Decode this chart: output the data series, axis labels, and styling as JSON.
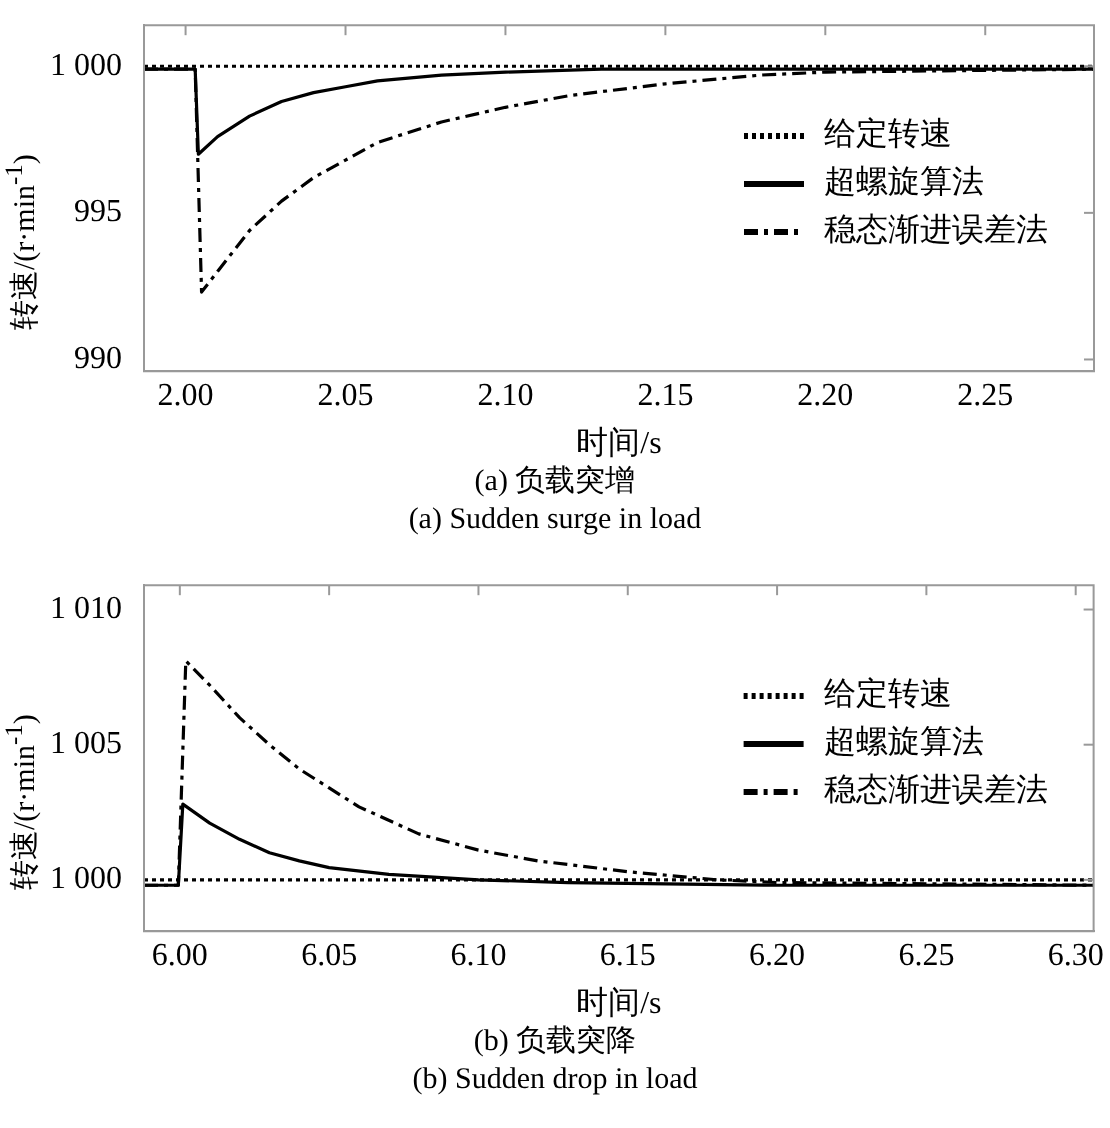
{
  "chart_data": [
    {
      "type": "line",
      "xlabel": "时间/s",
      "ylabel": "转速/(r·min$^{-1}$)",
      "annotations": [
        "(a) 负载突增",
        "(a) Sudden surge in load"
      ],
      "xlim": [
        1.987,
        2.284
      ],
      "xticks": [
        {
          "value": 2,
          "label": "2.00"
        },
        {
          "value": 2.05,
          "label": "2.05"
        },
        {
          "value": 2.1,
          "label": "2.10"
        },
        {
          "value": 2.15,
          "label": "2.15"
        },
        {
          "value": 2.2,
          "label": "2.20"
        },
        {
          "value": 2.25,
          "label": "2.25"
        }
      ],
      "ylim": [
        989.6,
        1001.4
      ],
      "yticks": [
        990,
        995,
        {
          "value": 1000,
          "label": "1 000"
        }
      ],
      "legend": "right",
      "grid": false,
      "marker": "none",
      "series": [
        {
          "name": "给定转速",
          "color": "#000000",
          "line_style": "dotted",
          "x": [
            1.987,
            2.284
          ],
          "values": [
            1000,
            1000
          ]
        },
        {
          "name": "超螺旋算法",
          "color": "#000000",
          "line_style": "solid",
          "x": [
            1.987,
            2.003,
            2.004,
            2.01,
            2.02,
            2.03,
            2.04,
            2.05,
            2.06,
            2.08,
            2.1,
            2.13,
            2.16,
            2.2,
            2.284
          ],
          "values": [
            999.9,
            999.9,
            997.0,
            997.6,
            998.3,
            998.8,
            999.1,
            999.3,
            999.5,
            999.7,
            999.8,
            999.9,
            999.9,
            999.9,
            999.9
          ]
        },
        {
          "name": "稳态渐进误差法",
          "color": "#000000",
          "line_style": "dashed",
          "x": [
            1.987,
            2.003,
            2.005,
            2.01,
            2.02,
            2.03,
            2.04,
            2.05,
            2.06,
            2.08,
            2.1,
            2.12,
            2.15,
            2.18,
            2.2,
            2.284
          ],
          "values": [
            999.9,
            999.9,
            992.3,
            993.0,
            994.4,
            995.4,
            996.2,
            996.8,
            997.4,
            998.1,
            998.6,
            999.0,
            999.4,
            999.7,
            999.8,
            999.9
          ]
        }
      ]
    },
    {
      "type": "line",
      "xlabel": "时间/s",
      "ylabel": "转速/(r·min$^{-1}$)",
      "annotations": [
        "(b) 负载突降",
        "(b) Sudden drop in load"
      ],
      "xlim": [
        5.988,
        6.306
      ],
      "xticks": [
        {
          "value": 6,
          "label": "6.00"
        },
        {
          "value": 6.05,
          "label": "6.05"
        },
        {
          "value": 6.1,
          "label": "6.10"
        },
        {
          "value": 6.15,
          "label": "6.15"
        },
        {
          "value": 6.2,
          "label": "6.20"
        },
        {
          "value": 6.25,
          "label": "6.25"
        },
        {
          "value": 6.3,
          "label": "6.30"
        }
      ],
      "ylim": [
        998.1,
        1010.9
      ],
      "yticks": [
        {
          "value": 1000,
          "label": "1 000"
        },
        {
          "value": 1005,
          "label": "1 005"
        },
        {
          "value": 1010,
          "label": "1 010"
        }
      ],
      "legend": "right",
      "grid": false,
      "marker": "none",
      "series": [
        {
          "name": "给定转速",
          "color": "#000000",
          "line_style": "dotted",
          "x": [
            5.988,
            6.306
          ],
          "values": [
            1000,
            1000
          ]
        },
        {
          "name": "超螺旋算法",
          "color": "#000000",
          "line_style": "solid",
          "x": [
            5.988,
            5.9995,
            6.001,
            6.01,
            6.02,
            6.03,
            6.04,
            6.05,
            6.07,
            6.1,
            6.13,
            6.2,
            6.306
          ],
          "values": [
            999.8,
            999.8,
            1002.8,
            1002.1,
            1001.5,
            1001.0,
            1000.7,
            1000.45,
            1000.2,
            1000.0,
            999.9,
            999.8,
            999.8
          ]
        },
        {
          "name": "稳态渐进误差法",
          "color": "#000000",
          "line_style": "dashed",
          "x": [
            5.988,
            5.9995,
            6.002,
            6.01,
            6.02,
            6.03,
            6.04,
            6.05,
            6.06,
            6.08,
            6.1,
            6.12,
            6.15,
            6.18,
            6.2,
            6.306
          ],
          "values": [
            999.8,
            999.8,
            1008.1,
            1007.2,
            1006.0,
            1005.0,
            1004.1,
            1003.4,
            1002.7,
            1001.7,
            1001.1,
            1000.7,
            1000.3,
            1000.0,
            999.9,
            999.8
          ]
        }
      ]
    }
  ]
}
